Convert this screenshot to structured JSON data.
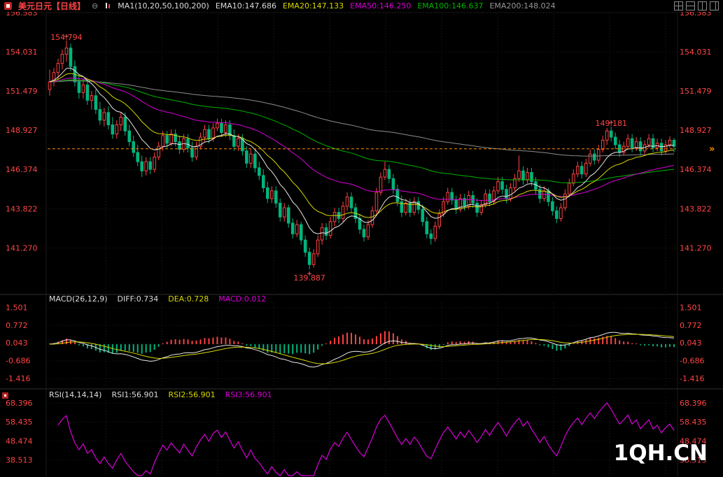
{
  "topbar": {
    "symbol": "美元日元【日线】",
    "ma_label": "MA1(10,20,50,100,200)",
    "ema_labels": [
      "EMA10:147.686",
      "EMA20:147.133",
      "EMA50:146.250",
      "EMA100:146.637",
      "EMA200:148.024"
    ]
  },
  "macd": {
    "title": "MACD(26,12,9)",
    "diff": "DIFF:0.734",
    "dea": "DEA:0.728",
    "macd": "MACD:0.012"
  },
  "rsi": {
    "title": "RSI(14,14,14)",
    "rsi1": "RSI1:56.901",
    "rsi2": "RSI2:56.901",
    "rsi3": "RSI3:56.901"
  },
  "watermark": "1QH.CN",
  "icons": {
    "collapse": "⊖",
    "price_arrow": "»",
    "window_icons": [
      "quad-layout",
      "horizontal-split",
      "vertical-split",
      "right-split"
    ]
  },
  "colors": {
    "up": "#ff4242",
    "down": "#00b47d",
    "ema10": "#e8e8e8",
    "ema20": "#d8d800",
    "ema50": "#d800d8",
    "ema100": "#00b400",
    "ema200": "#8c8c8c",
    "diff": "#e8e8e8",
    "dea": "#d8d800",
    "macd_hist_pos": "#ff4242",
    "macd_hist_neg": "#00b47d",
    "rsi": "#d800d8",
    "axis_text": "#ff4545",
    "last_price_line": "#ff8c00"
  },
  "chart_data": {
    "type": "candlestick",
    "symbol": "美元日元",
    "period": "日线",
    "price_panel": {
      "ylim": [
        138.3,
        156.7
      ],
      "ticks": [
        156.583,
        154.031,
        151.479,
        148.927,
        146.374,
        143.822,
        141.27
      ],
      "last_price": 147.74,
      "ema_periods": [
        10,
        20,
        50,
        100,
        200
      ],
      "ema_current": {
        "EMA10": 147.686,
        "EMA20": 147.133,
        "EMA50": 146.25,
        "EMA100": 146.637,
        "EMA200": 148.024
      },
      "candles": [
        [
          151.6,
          152.9,
          151.2,
          152.1
        ],
        [
          152.1,
          153.0,
          151.8,
          152.7
        ],
        [
          152.7,
          153.6,
          152.3,
          153.3
        ],
        [
          153.3,
          154.2,
          152.9,
          153.9
        ],
        [
          153.9,
          154.794,
          153.4,
          154.3
        ],
        [
          154.3,
          154.6,
          152.8,
          153.1
        ],
        [
          153.1,
          153.5,
          151.8,
          152.1
        ],
        [
          152.1,
          152.6,
          151.0,
          151.4
        ],
        [
          151.4,
          152.3,
          151.0,
          151.9
        ],
        [
          151.9,
          152.2,
          150.6,
          150.9
        ],
        [
          150.9,
          151.5,
          150.3,
          151.2
        ],
        [
          151.2,
          151.6,
          150.0,
          150.3
        ],
        [
          150.3,
          150.8,
          149.3,
          149.6
        ],
        [
          149.6,
          150.4,
          149.2,
          150.1
        ],
        [
          150.1,
          150.5,
          149.0,
          149.3
        ],
        [
          149.3,
          149.8,
          148.4,
          148.7
        ],
        [
          148.7,
          149.6,
          148.4,
          149.3
        ],
        [
          149.3,
          150.1,
          148.9,
          149.8
        ],
        [
          149.8,
          150.1,
          148.6,
          148.9
        ],
        [
          148.9,
          149.3,
          147.9,
          148.2
        ],
        [
          148.2,
          148.6,
          147.2,
          147.5
        ],
        [
          147.5,
          148.0,
          146.6,
          146.9
        ],
        [
          146.9,
          147.3,
          145.9,
          146.3
        ],
        [
          146.3,
          147.2,
          146.0,
          146.9
        ],
        [
          146.9,
          147.2,
          146.1,
          146.4
        ],
        [
          146.4,
          147.5,
          146.2,
          147.2
        ],
        [
          147.2,
          148.2,
          147.0,
          147.9
        ],
        [
          147.9,
          148.9,
          147.6,
          148.6
        ],
        [
          148.6,
          148.9,
          147.8,
          148.1
        ],
        [
          148.1,
          149.0,
          147.9,
          148.7
        ],
        [
          148.7,
          149.0,
          147.9,
          148.2
        ],
        [
          148.2,
          148.6,
          147.4,
          147.7
        ],
        [
          147.7,
          148.7,
          147.5,
          148.4
        ],
        [
          148.4,
          148.7,
          147.5,
          147.8
        ],
        [
          147.8,
          148.2,
          146.9,
          147.2
        ],
        [
          147.2,
          148.2,
          147.0,
          147.9
        ],
        [
          147.9,
          148.8,
          147.7,
          148.5
        ],
        [
          148.5,
          149.3,
          148.2,
          149.0
        ],
        [
          149.0,
          149.3,
          148.1,
          148.4
        ],
        [
          148.4,
          149.4,
          148.2,
          149.1
        ],
        [
          149.1,
          149.7,
          148.9,
          149.4
        ],
        [
          149.4,
          149.7,
          148.5,
          148.8
        ],
        [
          148.8,
          149.6,
          148.5,
          149.3
        ],
        [
          149.3,
          149.6,
          148.3,
          148.6
        ],
        [
          148.6,
          149.0,
          147.6,
          147.9
        ],
        [
          147.9,
          148.7,
          147.6,
          148.4
        ],
        [
          148.4,
          148.7,
          147.3,
          147.6
        ],
        [
          147.6,
          147.9,
          146.5,
          146.8
        ],
        [
          146.8,
          147.7,
          146.5,
          147.4
        ],
        [
          147.4,
          147.7,
          146.2,
          146.5
        ],
        [
          146.5,
          146.9,
          145.7,
          146.0
        ],
        [
          146.0,
          146.4,
          144.9,
          145.2
        ],
        [
          145.2,
          145.6,
          144.2,
          144.5
        ],
        [
          144.5,
          145.3,
          144.2,
          145.0
        ],
        [
          145.0,
          145.3,
          143.9,
          144.2
        ],
        [
          144.2,
          144.5,
          143.0,
          143.3
        ],
        [
          143.3,
          144.2,
          143.0,
          143.9
        ],
        [
          143.9,
          144.1,
          142.6,
          142.9
        ],
        [
          142.9,
          143.2,
          141.9,
          142.2
        ],
        [
          142.2,
          143.1,
          142.0,
          142.8
        ],
        [
          142.8,
          143.0,
          141.5,
          141.8
        ],
        [
          141.8,
          142.1,
          140.7,
          141.0
        ],
        [
          141.0,
          141.3,
          139.887,
          140.2
        ],
        [
          140.2,
          141.2,
          140.0,
          140.9
        ],
        [
          140.9,
          142.1,
          140.7,
          141.8
        ],
        [
          141.8,
          142.9,
          141.5,
          142.6
        ],
        [
          142.6,
          142.9,
          141.8,
          142.1
        ],
        [
          142.1,
          143.3,
          141.9,
          143.0
        ],
        [
          143.0,
          143.9,
          142.7,
          143.6
        ],
        [
          143.6,
          143.9,
          142.9,
          143.2
        ],
        [
          143.2,
          144.3,
          143.0,
          144.0
        ],
        [
          144.0,
          144.9,
          143.7,
          144.6
        ],
        [
          144.6,
          144.9,
          143.6,
          143.9
        ],
        [
          143.9,
          144.2,
          142.9,
          143.2
        ],
        [
          143.2,
          143.5,
          142.2,
          142.5
        ],
        [
          142.5,
          142.8,
          141.7,
          142.0
        ],
        [
          142.0,
          143.1,
          141.8,
          142.8
        ],
        [
          142.8,
          144.0,
          142.6,
          143.7
        ],
        [
          143.7,
          145.2,
          143.5,
          144.9
        ],
        [
          144.9,
          146.2,
          144.7,
          145.9
        ],
        [
          145.9,
          146.9,
          145.7,
          146.4
        ],
        [
          146.4,
          146.7,
          145.5,
          145.8
        ],
        [
          145.8,
          146.1,
          144.8,
          145.1
        ],
        [
          145.1,
          145.4,
          144.0,
          144.3
        ],
        [
          144.3,
          144.7,
          143.3,
          143.6
        ],
        [
          143.6,
          144.5,
          143.4,
          144.2
        ],
        [
          144.2,
          144.5,
          143.3,
          143.6
        ],
        [
          143.6,
          144.6,
          143.4,
          144.3
        ],
        [
          144.3,
          144.6,
          143.5,
          143.8
        ],
        [
          143.8,
          144.1,
          142.7,
          143.0
        ],
        [
          143.0,
          143.3,
          141.9,
          142.2
        ],
        [
          142.2,
          142.5,
          141.5,
          141.9
        ],
        [
          141.9,
          143.0,
          141.7,
          142.7
        ],
        [
          142.7,
          143.8,
          142.5,
          143.5
        ],
        [
          143.5,
          144.6,
          143.3,
          144.3
        ],
        [
          144.3,
          145.2,
          144.1,
          144.9
        ],
        [
          144.9,
          145.2,
          144.1,
          144.4
        ],
        [
          144.4,
          144.7,
          143.5,
          143.8
        ],
        [
          143.8,
          144.8,
          143.6,
          144.5
        ],
        [
          144.5,
          144.8,
          143.7,
          144.0
        ],
        [
          144.0,
          145.0,
          143.8,
          144.7
        ],
        [
          144.7,
          145.0,
          143.9,
          144.2
        ],
        [
          144.2,
          144.5,
          143.3,
          143.6
        ],
        [
          143.6,
          144.4,
          143.4,
          144.1
        ],
        [
          144.1,
          145.1,
          143.9,
          144.8
        ],
        [
          144.8,
          145.1,
          144.0,
          144.3
        ],
        [
          144.3,
          145.3,
          144.1,
          145.0
        ],
        [
          145.0,
          145.9,
          144.8,
          145.6
        ],
        [
          145.6,
          145.9,
          144.8,
          145.1
        ],
        [
          145.1,
          145.4,
          144.2,
          144.5
        ],
        [
          144.5,
          145.5,
          144.3,
          145.2
        ],
        [
          145.2,
          146.1,
          145.0,
          145.8
        ],
        [
          145.8,
          147.3,
          145.6,
          146.3
        ],
        [
          146.3,
          146.6,
          145.4,
          145.7
        ],
        [
          145.7,
          146.5,
          145.5,
          146.2
        ],
        [
          146.2,
          146.5,
          145.3,
          145.6
        ],
        [
          145.6,
          145.9,
          144.8,
          145.1
        ],
        [
          145.1,
          145.4,
          144.2,
          144.5
        ],
        [
          144.5,
          145.3,
          144.3,
          145.0
        ],
        [
          145.0,
          145.2,
          144.0,
          144.3
        ],
        [
          144.3,
          144.6,
          143.4,
          143.7
        ],
        [
          143.7,
          144.0,
          142.9,
          143.2
        ],
        [
          143.2,
          144.2,
          143.0,
          143.9
        ],
        [
          143.9,
          145.1,
          143.7,
          144.8
        ],
        [
          144.8,
          145.8,
          144.6,
          145.5
        ],
        [
          145.5,
          146.4,
          145.3,
          146.1
        ],
        [
          146.1,
          146.9,
          145.9,
          146.6
        ],
        [
          146.6,
          146.9,
          145.8,
          146.1
        ],
        [
          146.1,
          147.1,
          145.9,
          146.8
        ],
        [
          146.8,
          147.7,
          146.6,
          147.4
        ],
        [
          147.4,
          147.7,
          146.7,
          147.0
        ],
        [
          147.0,
          148.0,
          146.8,
          147.7
        ],
        [
          147.7,
          148.6,
          147.5,
          148.3
        ],
        [
          148.3,
          149.1,
          148.0,
          148.9
        ],
        [
          148.9,
          149.181,
          148.2,
          148.5
        ],
        [
          148.5,
          148.8,
          147.7,
          148.0
        ],
        [
          148.0,
          148.3,
          147.2,
          147.5
        ],
        [
          147.5,
          148.2,
          147.3,
          147.9
        ],
        [
          147.9,
          148.7,
          147.7,
          148.4
        ],
        [
          148.4,
          148.7,
          147.5,
          147.8
        ],
        [
          147.8,
          148.5,
          147.6,
          148.2
        ],
        [
          148.2,
          148.5,
          147.3,
          147.6
        ],
        [
          147.6,
          148.3,
          147.4,
          148.0
        ],
        [
          148.0,
          148.7,
          147.8,
          148.4
        ],
        [
          148.4,
          148.7,
          147.5,
          147.8
        ],
        [
          147.8,
          148.4,
          147.6,
          148.1
        ],
        [
          148.1,
          148.4,
          147.3,
          147.6
        ],
        [
          147.6,
          148.3,
          147.4,
          148.0
        ],
        [
          148.0,
          148.55,
          147.8,
          148.3
        ],
        [
          148.3,
          148.45,
          147.5,
          147.9
        ]
      ]
    },
    "macd_panel": {
      "params": [
        26,
        12,
        9
      ],
      "diff": 0.734,
      "dea": 0.728,
      "macd": 0.012,
      "ticks": [
        1.501,
        0.772,
        0.043,
        -0.686,
        -1.416
      ],
      "ylim": [
        -1.75,
        1.7
      ],
      "display_scale": 0.5
    },
    "rsi_panel": {
      "params": [
        14,
        14,
        14
      ],
      "rsi1": 56.901,
      "rsi2": 56.901,
      "rsi3": 56.901,
      "ticks": [
        68.396,
        58.435,
        48.474,
        38.513
      ],
      "ylim": [
        30.5,
        71.5
      ]
    },
    "annotations": [
      {
        "text": "154.794",
        "index": 4,
        "anchor": "high"
      },
      {
        "text": "149.181",
        "index": 134,
        "anchor": "high"
      },
      {
        "text": "139.887",
        "index": 62,
        "anchor": "low"
      }
    ]
  }
}
